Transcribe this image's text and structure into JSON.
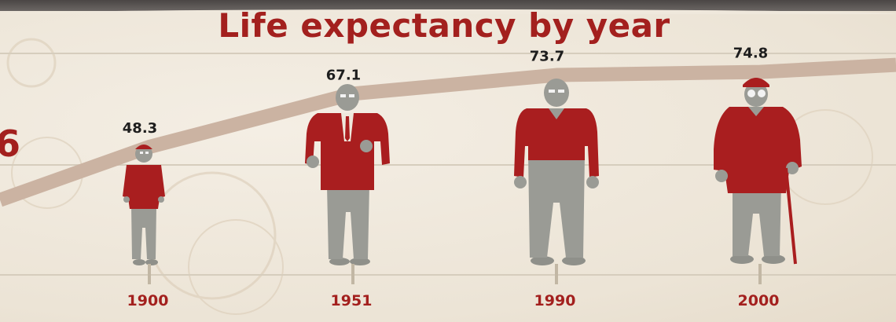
{
  "chart_data": {
    "type": "line",
    "title": "Life expectancy by year",
    "categories": [
      "1900",
      "1951",
      "1990",
      "2000"
    ],
    "values": [
      48.3,
      67.1,
      73.7,
      74.8
    ],
    "value_labels": [
      "48.3",
      "67.1",
      "73.7",
      "74.8"
    ],
    "partial_left_label": "6",
    "ylim": [
      40,
      80
    ],
    "grid": true,
    "legend": "none"
  },
  "colors": {
    "accent": "#a3201e",
    "line": "#cbb3a2",
    "figure_gray": "#9a9b95",
    "grid": "#d6cdbd",
    "background": "#efe8dc"
  },
  "icons": [
    "person-child-icon",
    "person-suit-icon",
    "person-casual-icon",
    "person-elderly-cane-icon"
  ]
}
